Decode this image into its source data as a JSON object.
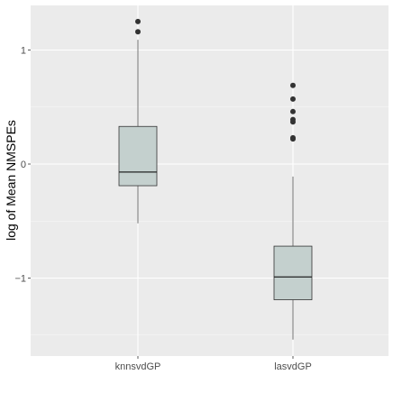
{
  "chart_data": {
    "type": "box",
    "xlabel": "",
    "ylabel": "log of Mean NMSPEs",
    "ylim": [
      -1.55,
      1.3
    ],
    "y_ticks": [
      -1,
      0,
      1
    ],
    "y_tick_labels": [
      "−1",
      "0",
      "1"
    ],
    "categories": [
      "knnsvdGP",
      "lasvdGP"
    ],
    "boxes": [
      {
        "category": "knnsvdGP",
        "whisker_low": -0.52,
        "q1": -0.19,
        "median": -0.07,
        "q3": 0.33,
        "whisker_high": 1.09,
        "outliers": [
          1.16,
          1.25
        ]
      },
      {
        "category": "lasvdGP",
        "whisker_low": -1.54,
        "q1": -1.19,
        "median": -0.99,
        "q3": -0.72,
        "whisker_high": -0.11,
        "outliers": [
          0.22,
          0.23,
          0.37,
          0.39,
          0.46,
          0.57,
          0.69
        ]
      }
    ],
    "grid": true,
    "legend": "none"
  },
  "colors": {
    "panel_bg": "#ebebeb",
    "grid_major": "#ffffff",
    "box_fill": "#c4d0ce",
    "box_stroke": "#333333",
    "outlier": "#333333"
  }
}
